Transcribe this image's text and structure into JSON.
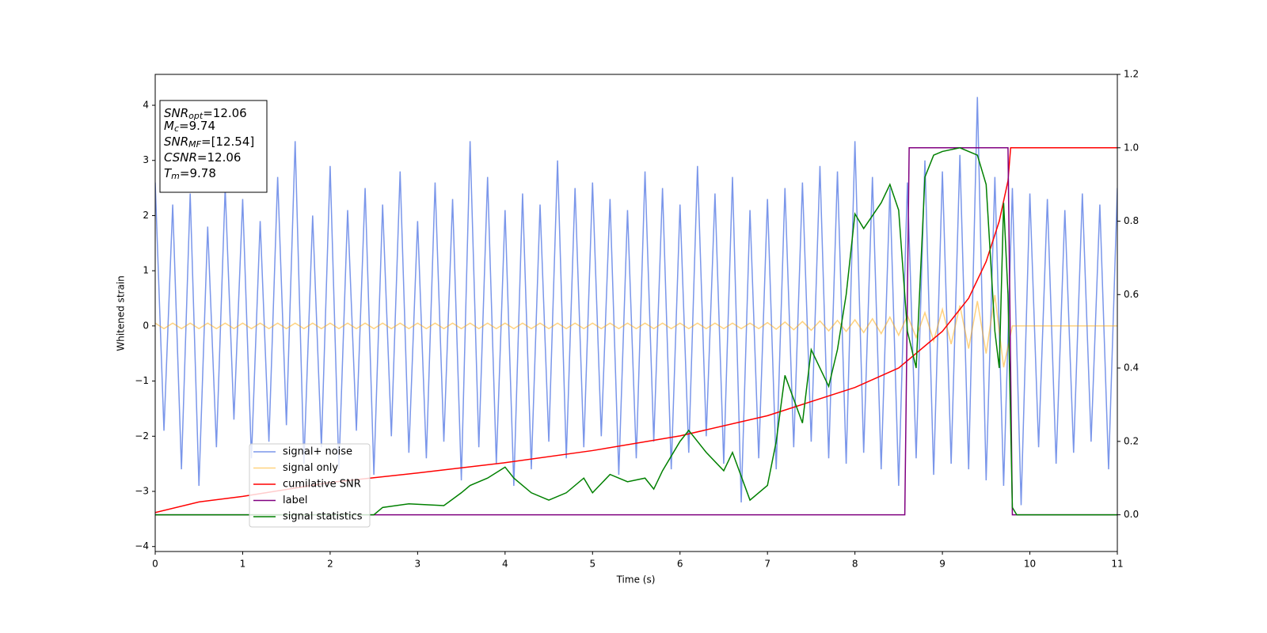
{
  "chart_data": {
    "type": "line",
    "xlabel": "Time (s)",
    "ylabel": "Whitened strain",
    "xlim": [
      0,
      11
    ],
    "xticks": [
      0,
      1,
      2,
      3,
      4,
      5,
      6,
      7,
      8,
      9,
      10,
      11
    ],
    "ylim": [
      -4.09,
      4.56
    ],
    "yticks": [
      {
        "value": -4,
        "label": "−4"
      },
      {
        "value": -3,
        "label": "−3"
      },
      {
        "value": -2,
        "label": "−2"
      },
      {
        "value": -1,
        "label": "−1"
      },
      0,
      1,
      2,
      3,
      4
    ],
    "y2lim": [
      -0.1,
      1.2
    ],
    "y2ticks": [
      {
        "value": 0,
        "label": "0.0"
      },
      {
        "value": 0.2,
        "label": "0.2"
      },
      {
        "value": 0.4,
        "label": "0.4"
      },
      {
        "value": 0.6,
        "label": "0.6"
      },
      {
        "value": 0.8,
        "label": "0.8"
      },
      {
        "value": 1,
        "label": "1.0"
      },
      {
        "value": 1.2,
        "label": "1.2"
      }
    ],
    "annotation": [
      {
        "main": "SNR",
        "sub": "opt",
        "rest": "=12.06"
      },
      {
        "main": "M",
        "sub": "c",
        "rest": "=9.74"
      },
      {
        "main": "SNR",
        "sub": "MF",
        "rest": "=[12.54]"
      },
      {
        "main": "CSNR",
        "rest": "=12.06"
      },
      {
        "main": "T",
        "sub": "m",
        "rest": "=9.78"
      }
    ],
    "series": [
      {
        "name": "signal+ noise",
        "color": "#4169e1",
        "x": [
          0,
          0.1,
          0.2,
          0.3,
          0.4,
          0.5,
          0.6,
          0.7,
          0.8,
          0.9,
          1,
          1.1,
          1.2,
          1.3,
          1.4,
          1.5,
          1.6,
          1.7,
          1.8,
          1.9,
          2,
          2.1,
          2.2,
          2.3,
          2.4,
          2.5,
          2.6,
          2.7,
          2.8,
          2.9,
          3,
          3.1,
          3.2,
          3.3,
          3.4,
          3.5,
          3.6,
          3.7,
          3.8,
          3.9,
          4,
          4.1,
          4.2,
          4.3,
          4.4,
          4.5,
          4.6,
          4.7,
          4.8,
          4.9,
          5,
          5.1,
          5.2,
          5.3,
          5.4,
          5.5,
          5.6,
          5.7,
          5.8,
          5.9,
          6,
          6.1,
          6.2,
          6.3,
          6.4,
          6.5,
          6.6,
          6.7,
          6.8,
          6.9,
          7,
          7.1,
          7.2,
          7.3,
          7.4,
          7.5,
          7.6,
          7.7,
          7.8,
          7.9,
          8,
          8.1,
          8.2,
          8.3,
          8.4,
          8.5,
          8.6,
          8.7,
          8.8,
          8.9,
          9,
          9.1,
          9.2,
          9.3,
          9.4,
          9.5,
          9.6,
          9.7,
          9.8,
          9.9,
          10,
          10.1,
          10.2,
          10.3,
          10.4,
          10.5,
          10.6,
          10.7,
          10.8,
          10.9,
          11
        ],
        "values": [
          2.6,
          -1.9,
          2.2,
          -2.6,
          2.4,
          -2.9,
          1.8,
          -2.2,
          2.5,
          -1.7,
          2.3,
          -2.4,
          1.9,
          -2.1,
          2.7,
          -1.8,
          3.35,
          -2.5,
          2.0,
          -2.2,
          2.9,
          -2.6,
          2.1,
          -1.9,
          2.5,
          -2.7,
          2.2,
          -2.0,
          2.8,
          -2.3,
          1.9,
          -2.4,
          2.6,
          -2.1,
          2.3,
          -2.8,
          3.35,
          -2.2,
          2.7,
          -2.5,
          2.1,
          -2.9,
          2.4,
          -2.6,
          2.2,
          -2.1,
          3.0,
          -2.4,
          2.5,
          -2.2,
          2.6,
          -2.0,
          2.3,
          -2.7,
          2.1,
          -2.4,
          2.8,
          -2.1,
          2.5,
          -2.6,
          2.2,
          -2.3,
          2.9,
          -2.0,
          2.4,
          -2.5,
          2.7,
          -3.2,
          2.1,
          -2.4,
          2.3,
          -2.6,
          2.5,
          -2.2,
          2.6,
          -2.1,
          2.9,
          -2.4,
          2.8,
          -2.5,
          3.35,
          -2.3,
          2.7,
          -2.6,
          2.5,
          -2.9,
          2.6,
          -2.4,
          3.0,
          -2.7,
          2.8,
          -2.5,
          3.1,
          -2.6,
          4.15,
          -2.8,
          2.7,
          -2.9,
          2.5,
          -3.25,
          2.4,
          -2.2,
          2.3,
          -2.5,
          2.1,
          -2.3,
          2.4,
          -2.1,
          2.2,
          -2.6,
          2.5
        ]
      },
      {
        "name": "signal only",
        "color": "#ffa500",
        "x": [
          0,
          0.1,
          0.2,
          0.3,
          0.4,
          0.5,
          0.6,
          0.7,
          0.8,
          0.9,
          1,
          1.1,
          1.2,
          1.3,
          1.4,
          1.5,
          1.6,
          1.7,
          1.8,
          1.9,
          2,
          2.1,
          2.2,
          2.3,
          2.4,
          2.5,
          2.6,
          2.7,
          2.8,
          2.9,
          3,
          3.1,
          3.2,
          3.3,
          3.4,
          3.5,
          3.6,
          3.7,
          3.8,
          3.9,
          4,
          4.1,
          4.2,
          4.3,
          4.4,
          4.5,
          4.6,
          4.7,
          4.8,
          4.9,
          5,
          5.1,
          5.2,
          5.3,
          5.4,
          5.5,
          5.6,
          5.7,
          5.8,
          5.9,
          6,
          6.1,
          6.2,
          6.3,
          6.4,
          6.5,
          6.6,
          6.7,
          6.8,
          6.9,
          7,
          7.1,
          7.2,
          7.3,
          7.4,
          7.5,
          7.6,
          7.7,
          7.8,
          7.9,
          8,
          8.1,
          8.2,
          8.3,
          8.4,
          8.5,
          8.6,
          8.7,
          8.8,
          8.9,
          9,
          9.1,
          9.2,
          9.3,
          9.4,
          9.5,
          9.6,
          9.7,
          9.8,
          9.9,
          10,
          10.1,
          10.2,
          10.3,
          10.4,
          10.5,
          10.6,
          10.7,
          10.8,
          10.9,
          11
        ],
        "values": [
          0.05,
          -0.05,
          0.05,
          -0.05,
          0.05,
          -0.05,
          0.05,
          -0.05,
          0.05,
          -0.05,
          0.05,
          -0.05,
          0.05,
          -0.05,
          0.05,
          -0.05,
          0.05,
          -0.05,
          0.05,
          -0.05,
          0.05,
          -0.05,
          0.05,
          -0.05,
          0.05,
          -0.05,
          0.05,
          -0.05,
          0.05,
          -0.05,
          0.05,
          -0.05,
          0.05,
          -0.05,
          0.05,
          -0.05,
          0.05,
          -0.05,
          0.05,
          -0.05,
          0.05,
          -0.05,
          0.05,
          -0.05,
          0.05,
          -0.05,
          0.05,
          -0.05,
          0.05,
          -0.05,
          0.05,
          -0.05,
          0.05,
          -0.05,
          0.05,
          -0.05,
          0.05,
          -0.05,
          0.05,
          -0.05,
          0.05,
          -0.05,
          0.05,
          -0.05,
          0.05,
          -0.05,
          0.05,
          -0.05,
          0.05,
          -0.05,
          0.06,
          -0.06,
          0.07,
          -0.07,
          0.08,
          -0.08,
          0.09,
          -0.09,
          0.1,
          -0.1,
          0.11,
          -0.12,
          0.13,
          -0.14,
          0.16,
          -0.17,
          0.19,
          -0.21,
          0.24,
          -0.27,
          0.3,
          -0.33,
          0.37,
          -0.41,
          0.45,
          -0.5,
          0.56,
          -0.75,
          0,
          0,
          0,
          0,
          0,
          0,
          0,
          0,
          0,
          0,
          0,
          0,
          0
        ]
      },
      {
        "name": "cumilative SNR",
        "color": "#ff0000",
        "axis": "y2",
        "x": [
          0,
          0.5,
          1,
          2,
          3,
          4,
          5,
          6,
          7,
          8,
          8.5,
          9,
          9.3,
          9.5,
          9.65,
          9.75,
          9.78,
          11
        ],
        "values": [
          0.006,
          0.035,
          0.05,
          0.088,
          0.114,
          0.142,
          0.175,
          0.215,
          0.27,
          0.347,
          0.4,
          0.5,
          0.59,
          0.69,
          0.8,
          0.91,
          1.0,
          1.0
        ]
      },
      {
        "name": "label",
        "color": "#800080",
        "axis": "y2",
        "x": [
          0,
          8.57,
          8.62,
          9.75,
          9.8,
          11
        ],
        "values": [
          0,
          0,
          1,
          1,
          0,
          0
        ]
      },
      {
        "name": "signal statistics",
        "color": "#008000",
        "axis": "y2",
        "x": [
          0,
          2.5,
          2.6,
          2.9,
          3.3,
          3.5,
          3.6,
          3.8,
          4.0,
          4.1,
          4.3,
          4.5,
          4.7,
          4.9,
          5.0,
          5.2,
          5.4,
          5.6,
          5.7,
          5.8,
          6.0,
          6.1,
          6.3,
          6.5,
          6.6,
          6.8,
          7.0,
          7.1,
          7.2,
          7.4,
          7.5,
          7.7,
          7.8,
          7.9,
          8.0,
          8.1,
          8.3,
          8.4,
          8.5,
          8.6,
          8.7,
          8.8,
          8.9,
          9.0,
          9.2,
          9.4,
          9.5,
          9.6,
          9.65,
          9.7,
          9.75,
          9.8,
          9.85,
          11
        ],
        "values": [
          0,
          0,
          0.02,
          0.03,
          0.025,
          0.06,
          0.08,
          0.1,
          0.13,
          0.1,
          0.06,
          0.04,
          0.06,
          0.1,
          0.06,
          0.11,
          0.09,
          0.1,
          0.07,
          0.12,
          0.2,
          0.23,
          0.17,
          0.12,
          0.17,
          0.04,
          0.08,
          0.2,
          0.38,
          0.25,
          0.45,
          0.35,
          0.45,
          0.6,
          0.82,
          0.78,
          0.85,
          0.9,
          0.83,
          0.5,
          0.4,
          0.92,
          0.98,
          0.99,
          1.0,
          0.98,
          0.9,
          0.5,
          0.4,
          0.85,
          0.6,
          0.02,
          0,
          0
        ]
      }
    ]
  }
}
